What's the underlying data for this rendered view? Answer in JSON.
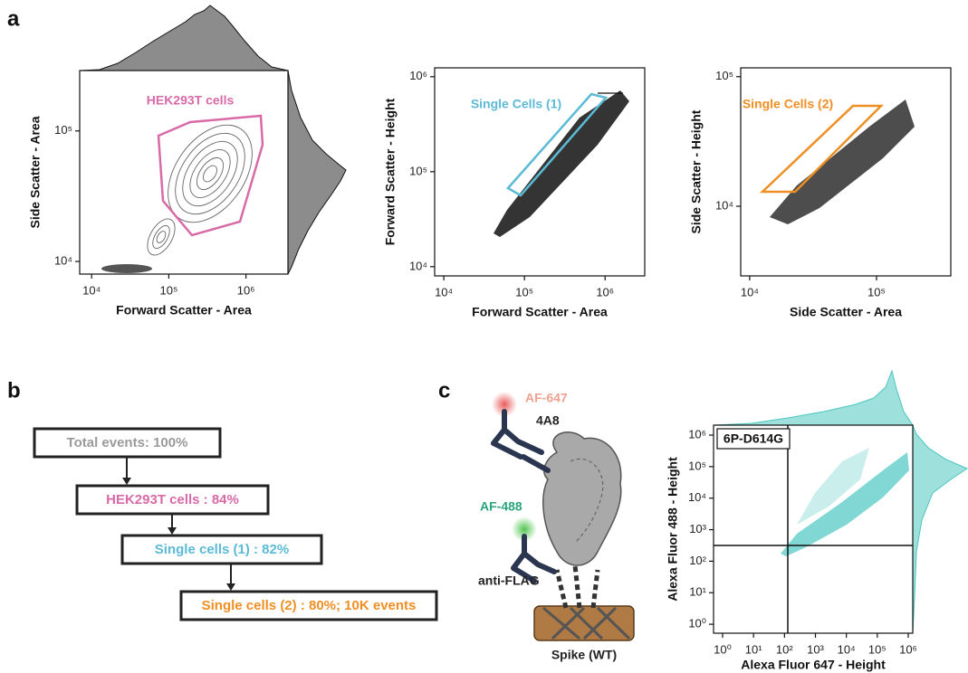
{
  "panels": {
    "a": {
      "label": "a",
      "plots": [
        {
          "gate_label": "HEK293T cells",
          "gate_color": "#d86aa8",
          "xlabel": "Forward Scatter - Area",
          "ylabel": "Side Scatter - Area",
          "log_scale": true,
          "xlim": [
            7000,
            3500000
          ],
          "ylim": [
            8000,
            290000
          ],
          "xticks": [
            {
              "value": 10000,
              "label": "10⁴"
            },
            {
              "value": 100000,
              "label": "10⁵"
            },
            {
              "value": 1000000,
              "label": "10⁶"
            }
          ],
          "yticks": [
            {
              "value": 10000,
              "label": "10⁴"
            },
            {
              "value": 100000,
              "label": "10⁵"
            }
          ]
        },
        {
          "gate_label": "Single Cells (1)",
          "gate_color": "#5bbad5",
          "xlabel": "Forward Scatter - Area",
          "ylabel": "Forward Scatter - Height",
          "log_scale": true,
          "xlim": [
            7700,
            3100000
          ],
          "ylim": [
            8000,
            1240000
          ],
          "xticks": [
            {
              "value": 10000,
              "label": "10⁴"
            },
            {
              "value": 100000,
              "label": "10⁵"
            },
            {
              "value": 1000000,
              "label": "10⁶"
            }
          ],
          "yticks": [
            {
              "value": 10000,
              "label": "10⁴"
            },
            {
              "value": 100000,
              "label": "10⁵"
            },
            {
              "value": 1000000,
              "label": "10⁶"
            }
          ]
        },
        {
          "gate_label": "Single Cells (2)",
          "gate_color": "#ef8f23",
          "xlabel": "Side Scatter - Area",
          "ylabel": "Side Scatter - Height",
          "log_scale": true,
          "xlim": [
            8500,
            385000
          ],
          "ylim": [
            2900,
            117000
          ],
          "xticks": [
            {
              "value": 10000,
              "label": "10⁴"
            },
            {
              "value": 100000,
              "label": "10⁵"
            }
          ],
          "yticks": [
            {
              "value": 10000,
              "label": "10⁴"
            },
            {
              "value": 100000,
              "label": "10⁵"
            }
          ]
        }
      ]
    },
    "b": {
      "label": "b",
      "steps": [
        {
          "text": "Total events: 100%",
          "color": "#9a9a9a"
        },
        {
          "text": "HEK293T cells : 84%",
          "color": "#d86aa8"
        },
        {
          "text": "Single cells (1) : 82%",
          "color": "#5bbad5"
        },
        {
          "text": "Single cells (2) : 80%; 10K events",
          "color": "#ef8f23"
        }
      ]
    },
    "c": {
      "label": "c",
      "diagram": {
        "af647": "AF-647",
        "antibody_4a8": "4A8",
        "af488": "AF-488",
        "anti_flag": "anti-FLAG",
        "spike": "Spike (WT)"
      },
      "plot": {
        "sample_label": "6P-D614G",
        "color": "#4cc6c0",
        "xlabel": "Alexa Fluor 647 - Height",
        "ylabel": "Alexa Fluor 488 - Height",
        "log_scale": true,
        "xlim": [
          0.51,
          1400000
        ],
        "ylim": [
          0.52,
          2070000
        ],
        "xticks": [
          {
            "value": 1,
            "label": "10⁰"
          },
          {
            "value": 10,
            "label": "10¹"
          },
          {
            "value": 100,
            "label": "10²"
          },
          {
            "value": 1000,
            "label": "10³"
          },
          {
            "value": 10000,
            "label": "10⁴"
          },
          {
            "value": 100000,
            "label": "10⁵"
          },
          {
            "value": 1000000,
            "label": "10⁶"
          }
        ],
        "yticks": [
          {
            "value": 1,
            "label": "10⁰"
          },
          {
            "value": 10,
            "label": "10¹"
          },
          {
            "value": 100,
            "label": "10²"
          },
          {
            "value": 1000,
            "label": "10³"
          },
          {
            "value": 10000,
            "label": "10⁴"
          },
          {
            "value": 100000,
            "label": "10⁵"
          },
          {
            "value": 1000000,
            "label": "10⁶"
          }
        ]
      }
    }
  }
}
